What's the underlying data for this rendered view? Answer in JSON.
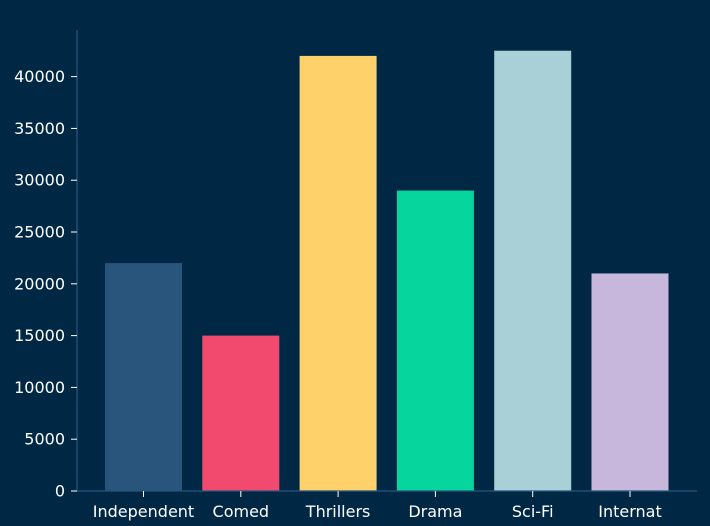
{
  "chart_data": {
    "type": "bar",
    "title": "",
    "xlabel": "",
    "ylabel": "",
    "categories": [
      "Independent",
      "Comed",
      "Thrillers",
      "Drama",
      "Sci-Fi",
      "Internat"
    ],
    "values": [
      22000,
      15000,
      42000,
      29000,
      42500,
      21000
    ],
    "colors": [
      "#29557D",
      "#F2496F",
      "#FED16A",
      "#06D69D",
      "#A8D0D6",
      "#C8B7DC"
    ],
    "ylim": [
      0,
      44500
    ],
    "yticks": [
      0,
      5000,
      10000,
      15000,
      20000,
      25000,
      30000,
      35000,
      40000
    ],
    "ytick_labels": [
      "0",
      "5000",
      "10000",
      "15000",
      "20000",
      "25000",
      "30000",
      "35000",
      "40000"
    ],
    "grid": false,
    "legend": "none"
  },
  "theme": {
    "background": "#002845",
    "axis_color": "#25557D",
    "text_color": "#FFFFFF"
  }
}
